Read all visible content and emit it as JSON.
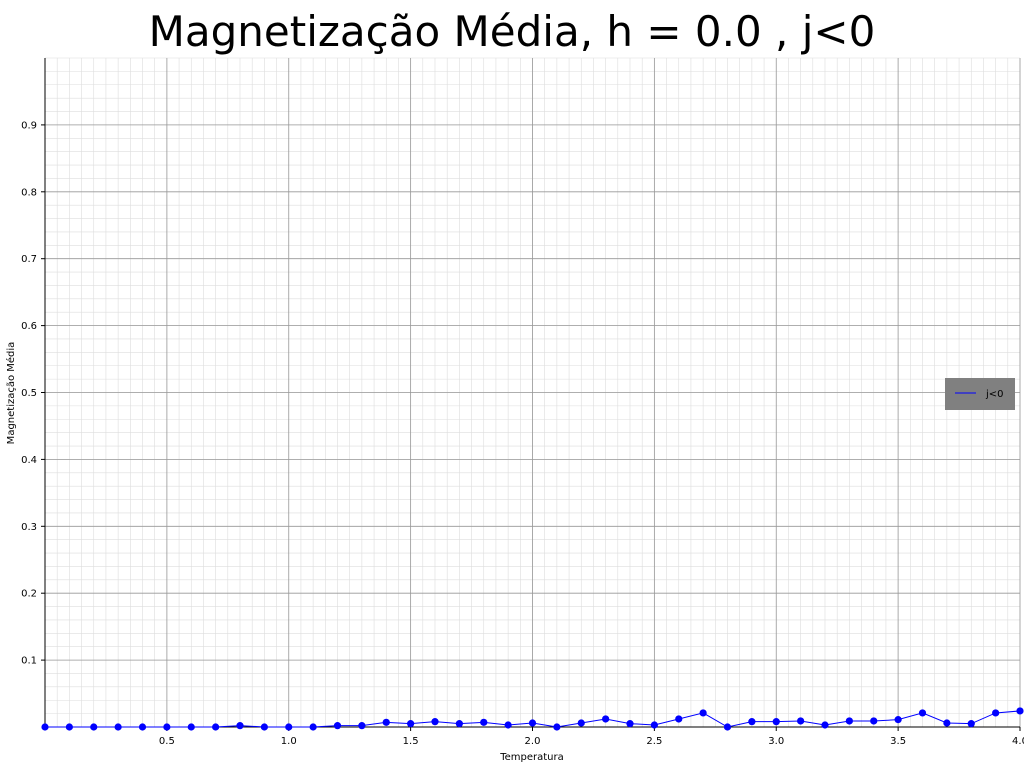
{
  "chart_data": {
    "type": "line",
    "title": "Magnetização Média, h = 0.0 , j<0",
    "xlabel": "Temperatura",
    "ylabel": "Magnetização Média",
    "xlim": [
      0.0,
      4.0
    ],
    "ylim": [
      0.0,
      1.0
    ],
    "x_ticks": [
      0.5,
      1.0,
      1.5,
      2.0,
      2.5,
      3.0,
      3.5,
      4.0
    ],
    "x_tick_labels": [
      "0.5",
      "1.0",
      "1.5",
      "2.0",
      "2.5",
      "3.0",
      "3.5",
      "4.0"
    ],
    "y_ticks": [
      0.1,
      0.2,
      0.3,
      0.4,
      0.5,
      0.6,
      0.7,
      0.8,
      0.9
    ],
    "y_tick_labels": [
      "0.1",
      "0.2",
      "0.3",
      "0.4",
      "0.5",
      "0.6",
      "0.7",
      "0.8",
      "0.9"
    ],
    "grid": true,
    "legend_position": "center-right",
    "series": [
      {
        "name": "j<0",
        "color": "#0000ff",
        "x": [
          0.0,
          0.1,
          0.2,
          0.3,
          0.4,
          0.5,
          0.6,
          0.7,
          0.8,
          0.9,
          1.0,
          1.1,
          1.2,
          1.3,
          1.4,
          1.5,
          1.6,
          1.7,
          1.8,
          1.9,
          2.0,
          2.1,
          2.2,
          2.3,
          2.4,
          2.5,
          2.6,
          2.7,
          2.8,
          2.9,
          3.0,
          3.1,
          3.2,
          3.3,
          3.4,
          3.5,
          3.6,
          3.7,
          3.8,
          3.9,
          4.0
        ],
        "y": [
          0.0,
          0.0,
          0.0,
          0.0,
          0.0,
          0.0,
          0.0,
          0.0,
          0.002,
          0.0,
          0.0,
          0.0,
          0.002,
          0.002,
          0.007,
          0.005,
          0.008,
          0.005,
          0.007,
          0.003,
          0.006,
          0.0,
          0.006,
          0.012,
          0.005,
          0.003,
          0.012,
          0.021,
          0.0,
          0.008,
          0.008,
          0.009,
          0.003,
          0.009,
          0.009,
          0.011,
          0.021,
          0.006,
          0.005,
          0.021,
          0.024
        ]
      }
    ]
  }
}
